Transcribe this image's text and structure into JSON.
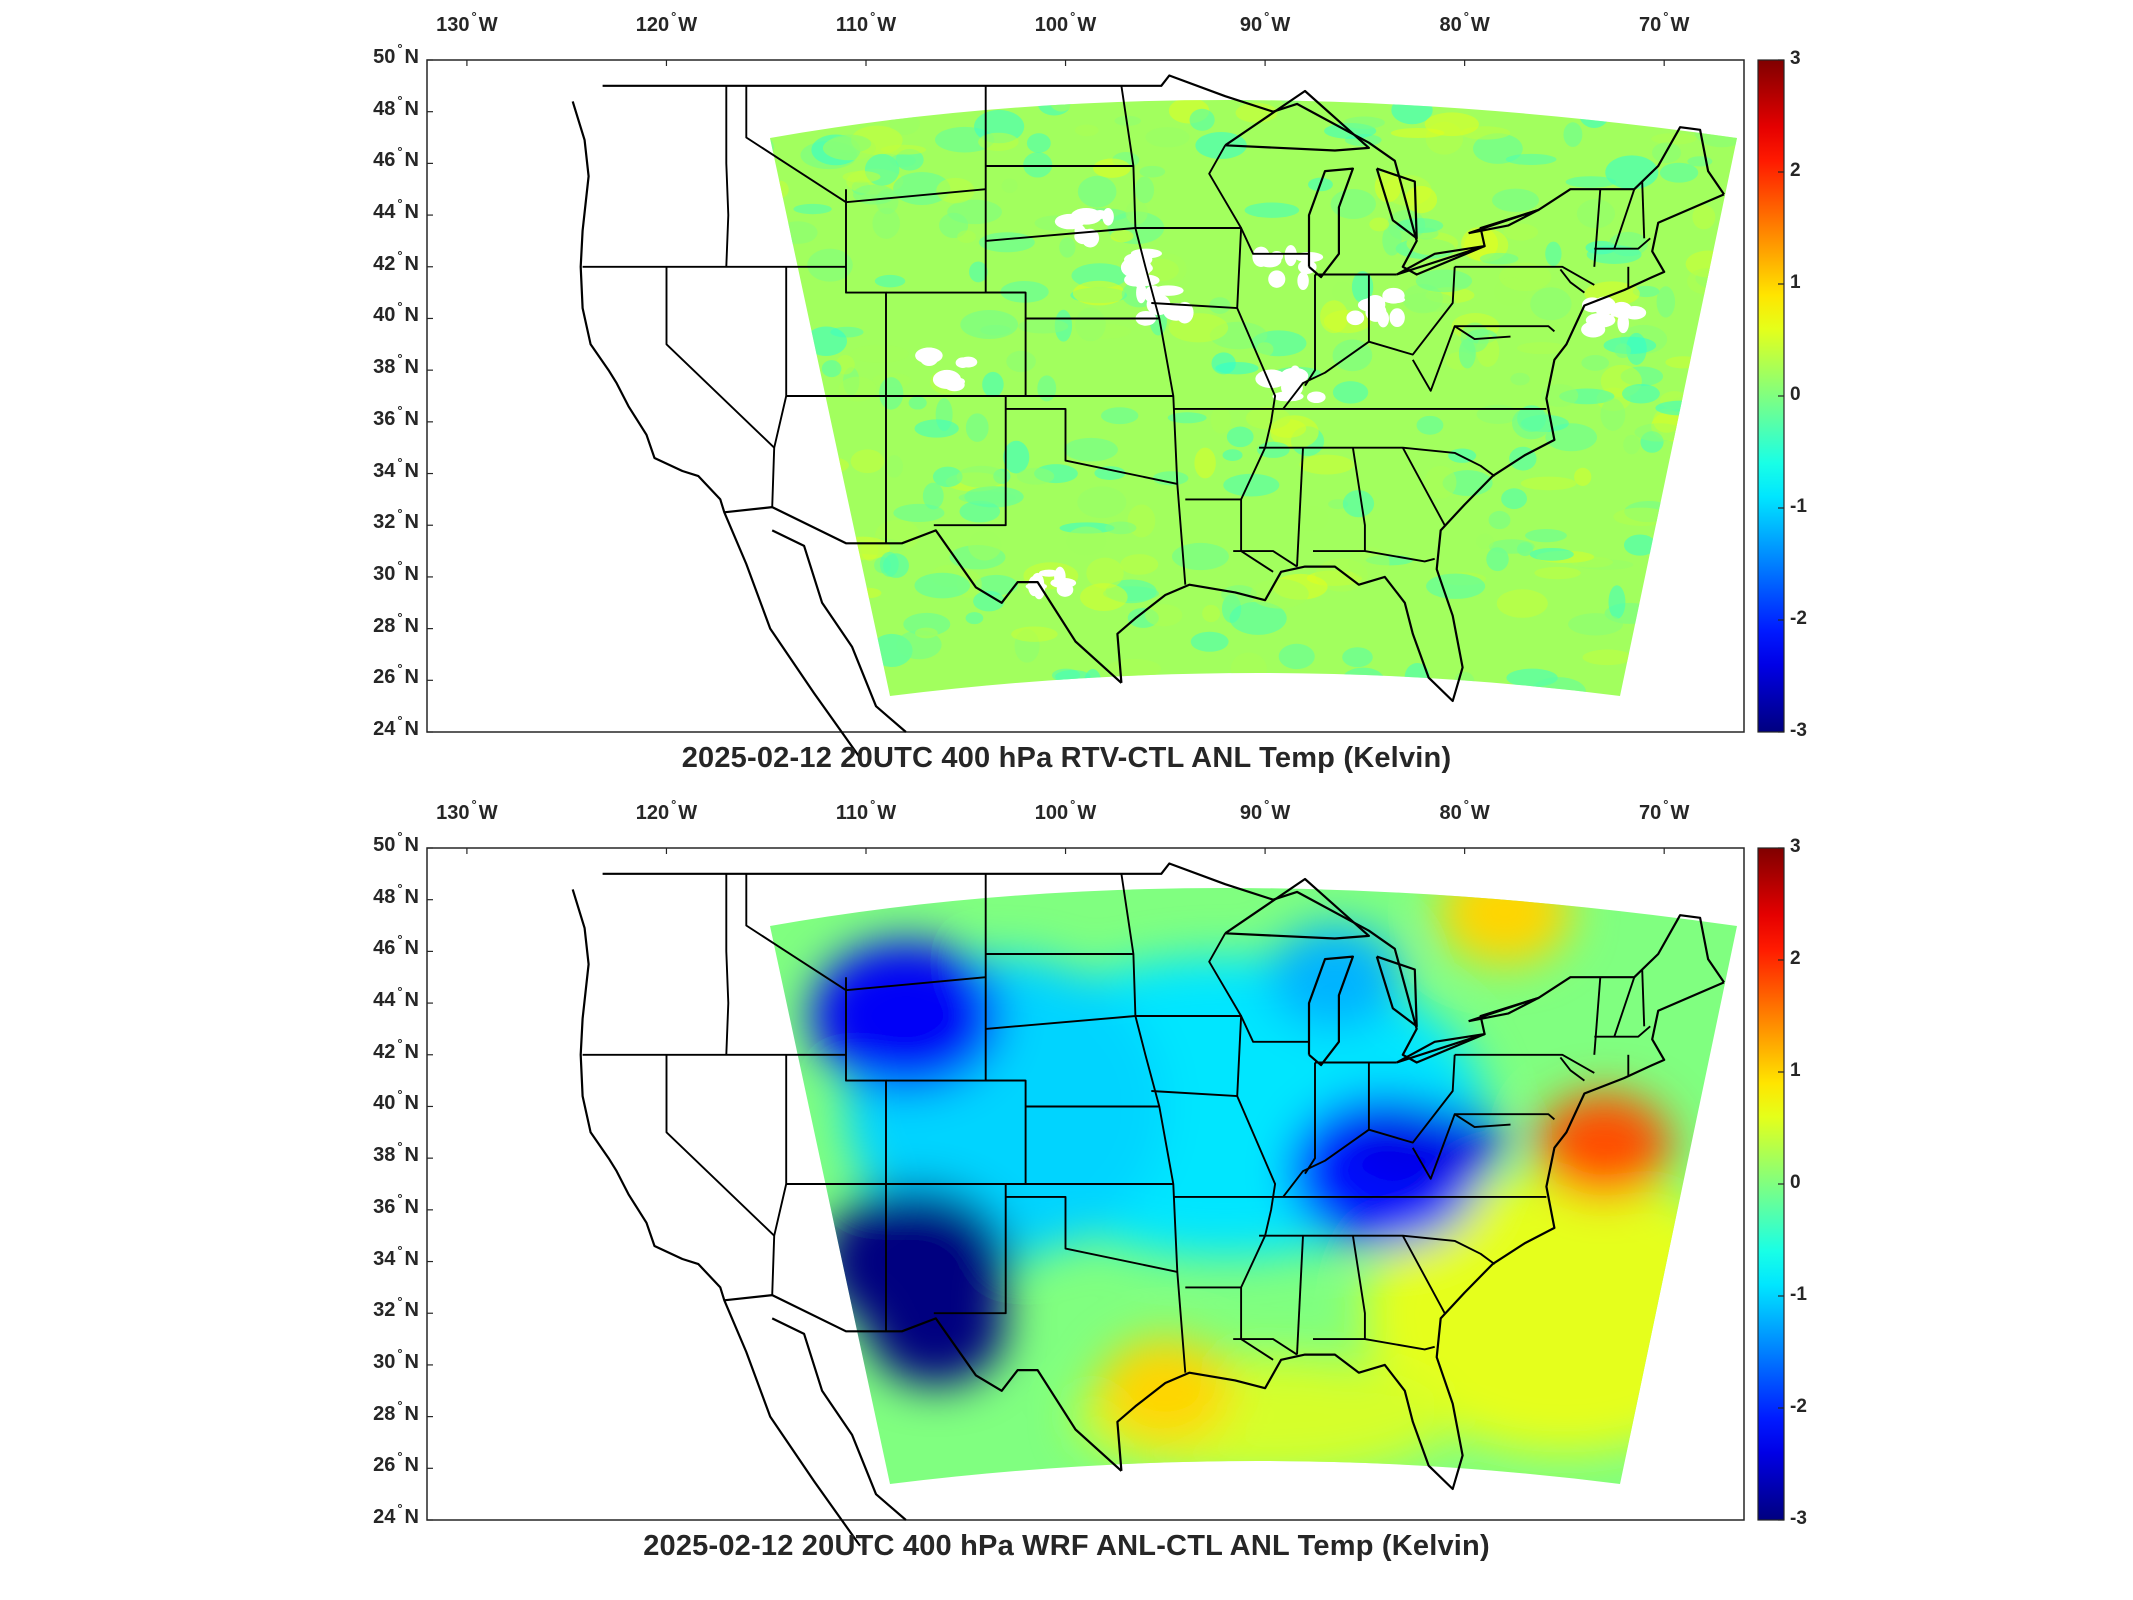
{
  "panels": [
    {
      "id": "top",
      "title": "2025-02-12 20UTC 400 hPa RTV-CTL ANL Temp (Kelvin)",
      "field": "rtv_minus_ctl",
      "description_values": {
        "typical": 0.2,
        "min": -0.5,
        "max": 0.6
      }
    },
    {
      "id": "bottom",
      "title": "2025-02-12 20UTC 400 hPa WRF ANL-CTL ANL Temp (Kelvin)",
      "field": "wrf_minus_ctl",
      "anomalies": [
        {
          "lon": -107.5,
          "lat": 34.0,
          "value": -3.0
        },
        {
          "lon": -108.0,
          "lat": 43.5,
          "value": -2.3
        },
        {
          "lon": -84.0,
          "lat": 37.5,
          "value": -2.2
        },
        {
          "lon": -86.5,
          "lat": 45.0,
          "value": -1.2
        },
        {
          "lon": -73.0,
          "lat": 38.5,
          "value": 1.8
        },
        {
          "lon": -78.0,
          "lat": 47.5,
          "value": 1.0
        },
        {
          "lon": -95.0,
          "lat": 29.0,
          "value": 1.0
        }
      ]
    }
  ],
  "axes": {
    "lon_ticks": [
      "130",
      "120",
      "110",
      "100",
      "90",
      "80",
      "70"
    ],
    "lon_hemisphere": "W",
    "lat_ticks": [
      "50",
      "48",
      "46",
      "44",
      "42",
      "40",
      "38",
      "36",
      "34",
      "32",
      "30",
      "28",
      "26",
      "24"
    ],
    "lat_hemisphere": "N",
    "degree_symbol": "°"
  },
  "colorbar": {
    "min": -3,
    "max": 3,
    "ticks": [
      "3",
      "2",
      "1",
      "0",
      "-1",
      "-2",
      "-3"
    ],
    "colormap": "jet"
  }
}
